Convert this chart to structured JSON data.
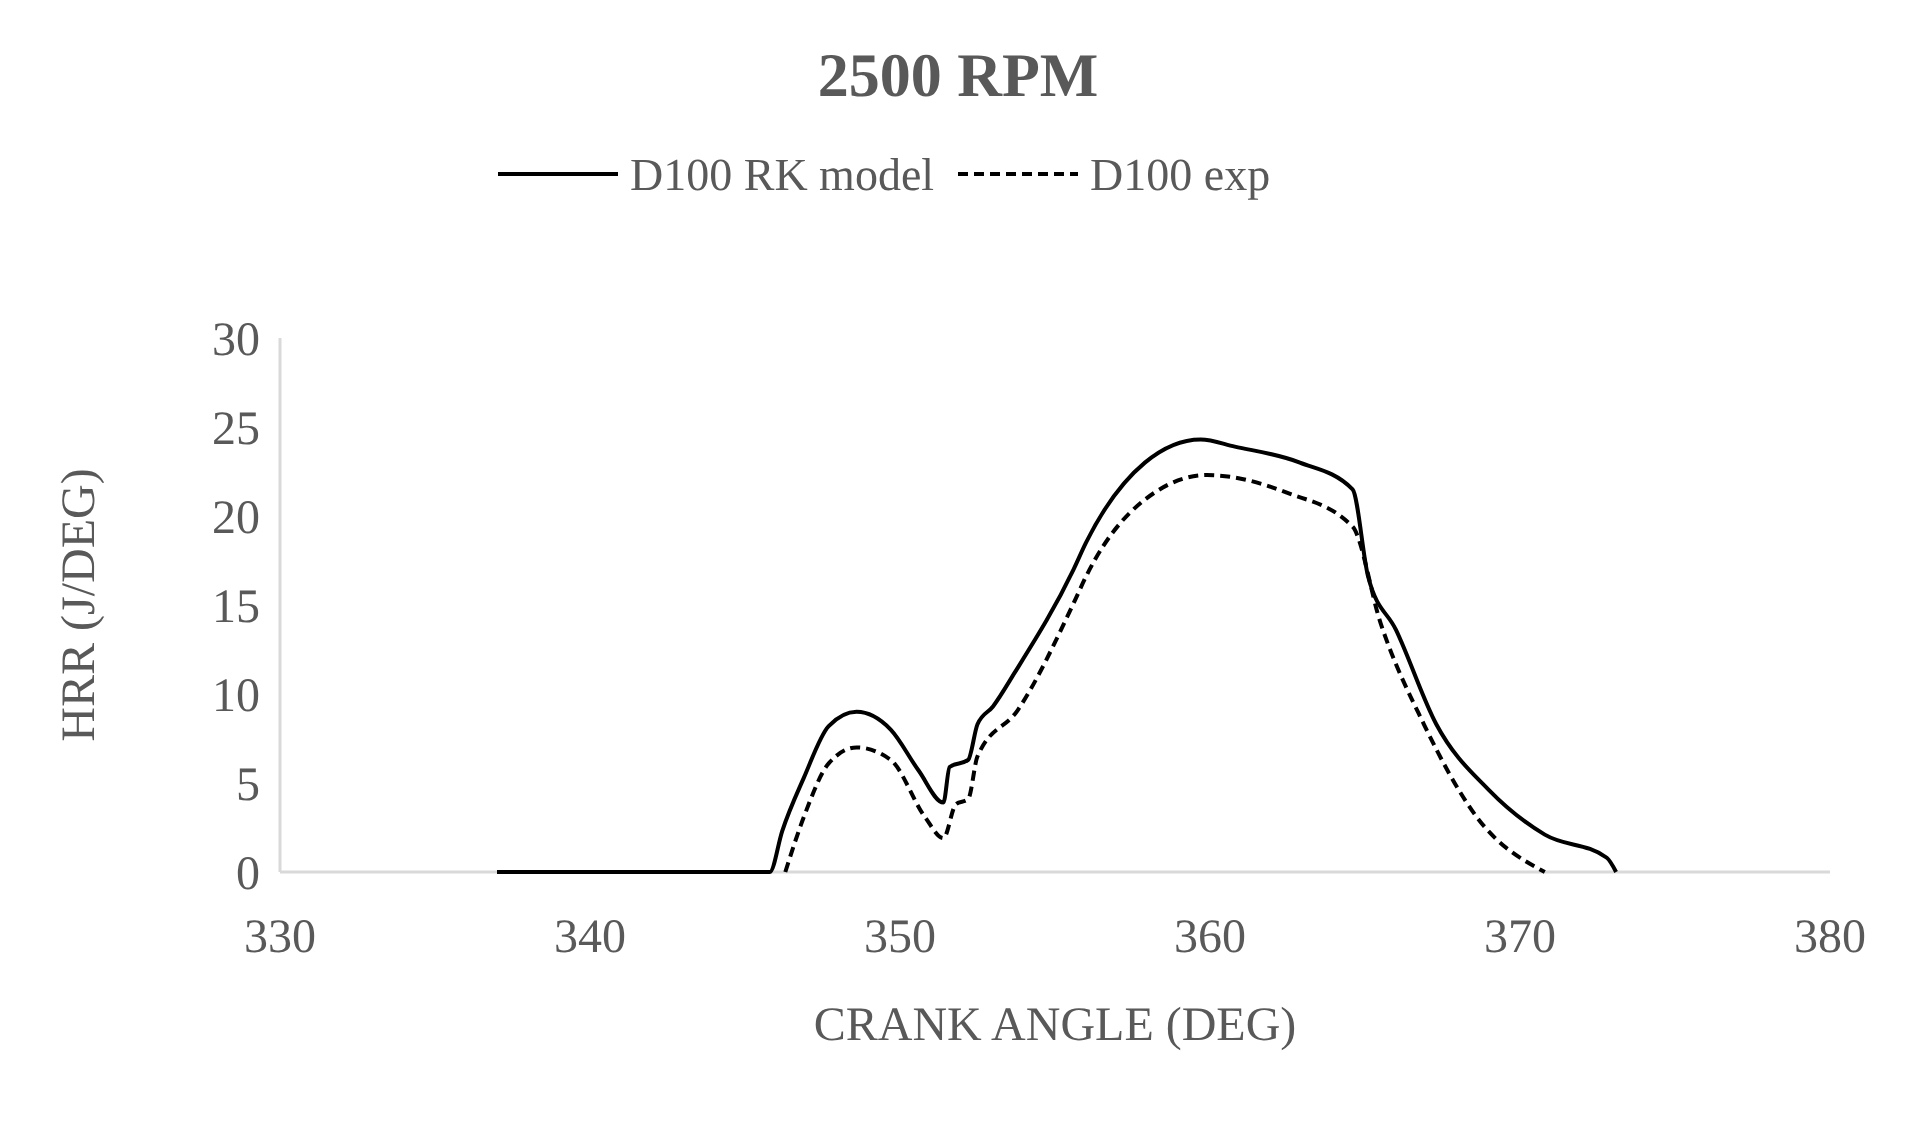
{
  "chart_data": {
    "type": "line",
    "title": "2500 RPM",
    "xlabel": "CRANK ANGLE (DEG)",
    "ylabel": "HRR (J/DEG)",
    "xlim": [
      330,
      380
    ],
    "xticks": [
      330,
      340,
      350,
      360,
      370,
      380
    ],
    "ylim": [
      0,
      30
    ],
    "yticks": [
      0,
      5,
      10,
      15,
      20,
      25,
      30
    ],
    "grid": false,
    "legend": "top",
    "marker": "none",
    "series": [
      {
        "name": "D100 RK model",
        "color": "#000000",
        "line_style": "solid",
        "x": [
          337.0,
          345.8,
          346.2,
          346.9,
          347.7,
          348.6,
          349.7,
          350.6,
          351.4,
          351.6,
          352.2,
          352.5,
          353.0,
          353.7,
          355.6,
          356.0,
          357.9,
          359.7,
          360.8,
          362.9,
          364.6,
          365.1,
          366.0,
          367.3,
          369.0,
          370.8,
          372.8,
          373.1
        ],
        "values": [
          0,
          0,
          2.3,
          5.3,
          8.2,
          9.0,
          8.0,
          5.7,
          3.9,
          5.9,
          6.3,
          8.3,
          9.3,
          11.2,
          17.0,
          18.5,
          23.0,
          24.3,
          23.9,
          23.0,
          21.5,
          16.6,
          13.6,
          8.3,
          4.6,
          2.1,
          0.8,
          0
        ]
      },
      {
        "name": "D100 exp",
        "color": "#000000",
        "line_style": "dashed",
        "x": [
          346.3,
          346.9,
          347.7,
          348.6,
          349.7,
          350.8,
          351.4,
          351.8,
          352.2,
          352.5,
          353.8,
          355.6,
          356.0,
          358.2,
          359.9,
          362.5,
          364.6,
          365.5,
          366.9,
          368.6,
          370.8
        ],
        "values": [
          0,
          3.1,
          6.1,
          7.0,
          6.3,
          3.1,
          1.9,
          3.8,
          4.1,
          6.5,
          9.1,
          15.1,
          16.6,
          21.3,
          22.3,
          21.3,
          19.4,
          14.0,
          8.3,
          3.1,
          0
        ]
      }
    ]
  }
}
